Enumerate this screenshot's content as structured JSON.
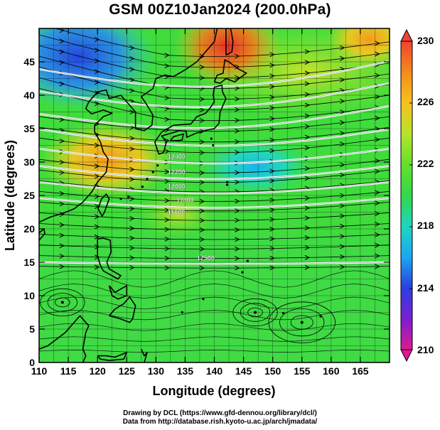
{
  "title": "GSM 00Z10Jan2024 (200.0hPa)",
  "map": {
    "xlabel": "Longitude (degrees)",
    "ylabel": "Latitude  (degrees)",
    "xticks": [
      110,
      115,
      120,
      125,
      130,
      135,
      140,
      145,
      150,
      155,
      160,
      165
    ],
    "yticks": [
      0,
      5,
      10,
      15,
      20,
      25,
      30,
      35,
      40,
      45
    ],
    "xlim": [
      110,
      170
    ],
    "ylim": [
      0,
      50
    ],
    "contour_labels": [
      "12400",
      "12200",
      "12000",
      "11800",
      "11600",
      "12500"
    ]
  },
  "colorbar": {
    "labels": [
      "230",
      "226",
      "222",
      "218",
      "214",
      "210"
    ],
    "range": [
      210,
      230
    ],
    "colors": [
      "#e0198f",
      "#7b1fd2",
      "#2b3fe0",
      "#1aa7f0",
      "#1fd6c0",
      "#32d84a",
      "#63e02c",
      "#b8e32a",
      "#f6c21e",
      "#f58a1a",
      "#ef4430"
    ]
  },
  "credits": {
    "line1": "Drawing by DCL (https://www.gfd-dennou.org/library/dcl/)",
    "line2": "Data from http://database.rish.kyoto-u.ac.jp/arch/jmadata/"
  }
}
